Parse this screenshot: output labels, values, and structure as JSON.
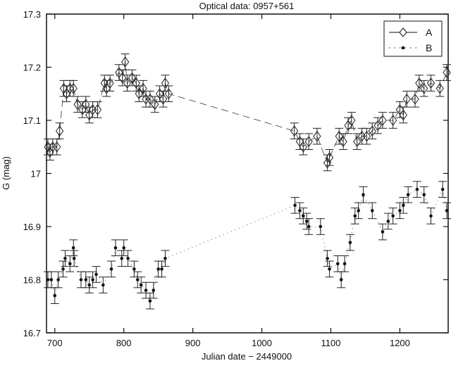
{
  "chart_data": {
    "type": "scatter",
    "title": "Optical data: 0957+561",
    "xlabel": "Julian date − 2449000",
    "ylabel": "G (mag)",
    "xlim": [
      688,
      1270
    ],
    "ylim": [
      16.7,
      17.3
    ],
    "xticks": [
      700,
      800,
      900,
      1000,
      1100,
      1200
    ],
    "yticks": [
      16.7,
      16.8,
      16.9,
      17,
      17.1,
      17.2,
      17.3
    ],
    "ytick_labels": [
      "16.7",
      "16.8",
      "16.9",
      "17",
      "17.1",
      "17.2",
      "17.3"
    ],
    "grid": false,
    "legend_position": "top-right",
    "error_bar_approx": 0.015,
    "series": [
      {
        "name": "A",
        "marker": "diamond",
        "line": "dashed",
        "x": [
          690,
          693,
          697,
          703,
          707,
          713,
          717,
          722,
          727,
          733,
          740,
          745,
          750,
          755,
          762,
          772,
          775,
          780,
          793,
          798,
          802,
          805,
          812,
          818,
          822,
          828,
          832,
          838,
          845,
          852,
          857,
          860,
          865,
          1047,
          1055,
          1060,
          1068,
          1080,
          1095,
          1098,
          1112,
          1118,
          1125,
          1130,
          1138,
          1145,
          1152,
          1160,
          1168,
          1175,
          1190,
          1200,
          1205,
          1210,
          1222,
          1228,
          1235,
          1245,
          1258,
          1268
        ],
        "y": [
          17.05,
          17.04,
          17.05,
          17.05,
          17.08,
          17.16,
          17.15,
          17.16,
          17.16,
          17.13,
          17.12,
          17.13,
          17.11,
          17.12,
          17.12,
          17.17,
          17.16,
          17.17,
          17.19,
          17.18,
          17.21,
          17.17,
          17.18,
          17.17,
          17.15,
          17.16,
          17.14,
          17.14,
          17.13,
          17.15,
          17.14,
          17.17,
          17.15,
          17.08,
          17.06,
          17.05,
          17.06,
          17.07,
          17.02,
          17.03,
          17.07,
          17.06,
          17.09,
          17.1,
          17.06,
          17.07,
          17.07,
          17.08,
          17.09,
          17.1,
          17.1,
          17.12,
          17.11,
          17.14,
          17.14,
          17.17,
          17.16,
          17.17,
          17.16,
          17.19
        ]
      },
      {
        "name": "B",
        "marker": "dot",
        "line": "dotted",
        "x": [
          690,
          695,
          700,
          705,
          712,
          715,
          722,
          727,
          728,
          738,
          745,
          750,
          755,
          760,
          770,
          782,
          788,
          797,
          800,
          806,
          815,
          820,
          825,
          832,
          838,
          843,
          850,
          855,
          860,
          1048,
          1055,
          1060,
          1065,
          1068,
          1085,
          1095,
          1098,
          1110,
          1115,
          1120,
          1128,
          1135,
          1140,
          1147,
          1160,
          1175,
          1183,
          1190,
          1200,
          1205,
          1212,
          1225,
          1235,
          1245,
          1262,
          1268
        ],
        "y": [
          16.8,
          16.8,
          16.77,
          16.8,
          16.82,
          16.84,
          16.83,
          16.86,
          16.84,
          16.8,
          16.8,
          16.79,
          16.8,
          16.81,
          16.79,
          16.82,
          16.86,
          16.84,
          16.86,
          16.84,
          16.82,
          16.8,
          16.79,
          16.78,
          16.76,
          16.78,
          16.82,
          16.82,
          16.84,
          16.94,
          16.93,
          16.92,
          16.91,
          16.9,
          16.9,
          16.84,
          16.82,
          16.83,
          16.8,
          16.83,
          16.87,
          16.92,
          16.93,
          16.96,
          16.93,
          16.89,
          16.91,
          16.92,
          16.93,
          16.94,
          16.96,
          16.97,
          16.96,
          16.92,
          16.97,
          16.93
        ]
      }
    ]
  }
}
